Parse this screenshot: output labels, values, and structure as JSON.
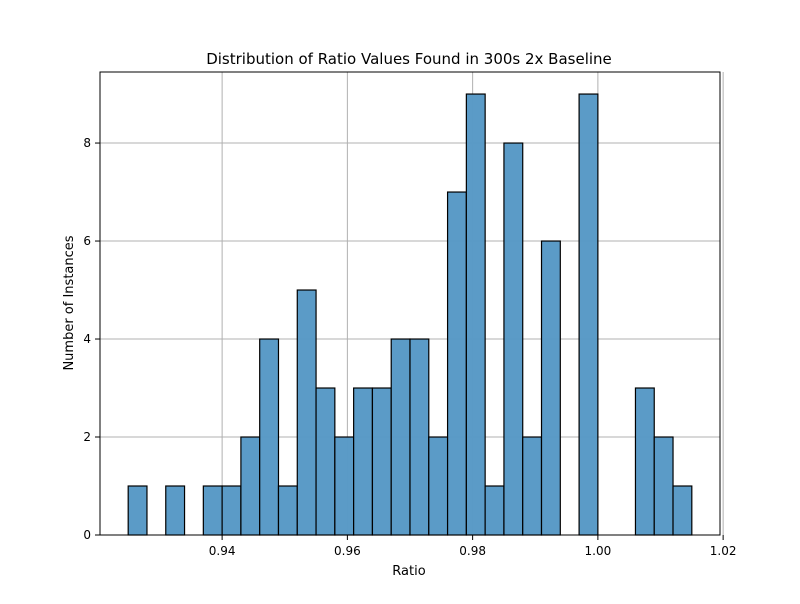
{
  "chart_data": {
    "type": "bar",
    "title": "Distribution of Ratio Values Found in 300s 2x Baseline",
    "xlabel": "Ratio",
    "ylabel": "Number of Instances",
    "xlim": [
      0.9205,
      1.0195
    ],
    "ylim": [
      0,
      9.45
    ],
    "xticks": [
      0.94,
      0.96,
      0.98,
      1.0,
      1.02
    ],
    "xtick_labels": [
      "0.94",
      "0.96",
      "0.98",
      "1.00",
      "1.02"
    ],
    "yticks": [
      0,
      2,
      4,
      6,
      8
    ],
    "ytick_labels": [
      "0",
      "2",
      "4",
      "6",
      "8"
    ],
    "grid": true,
    "bin_start": 0.925,
    "bin_width": 0.003,
    "values": [
      1,
      0,
      1,
      0,
      1,
      1,
      2,
      4,
      1,
      5,
      3,
      2,
      3,
      3,
      4,
      4,
      2,
      7,
      9,
      1,
      8,
      2,
      6,
      0,
      9,
      0,
      0,
      3,
      2,
      1
    ],
    "colors": {
      "bar_fill": "#5899c6",
      "bar_edge": "#000000",
      "grid": "#b0b0b0",
      "axes": "#000000"
    }
  }
}
